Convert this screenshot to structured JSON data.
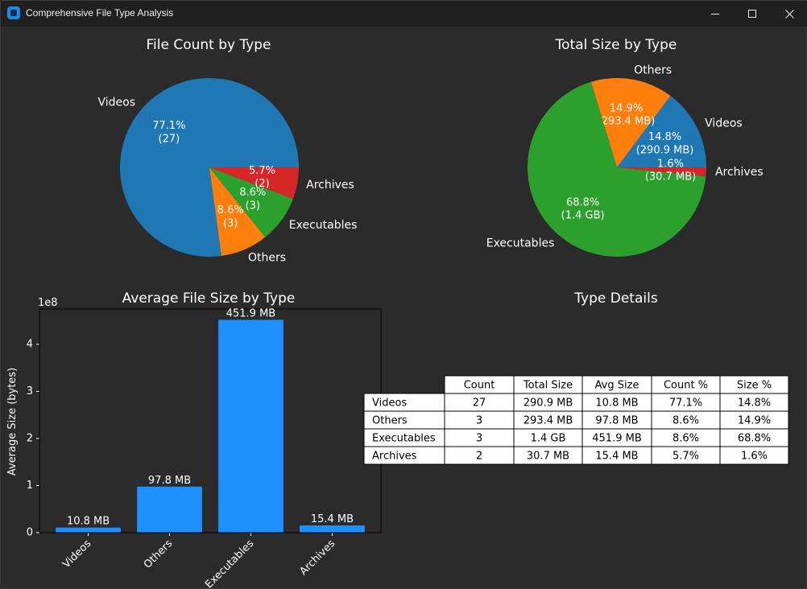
{
  "window": {
    "title": "Comprehensive File Type Analysis"
  },
  "colors": {
    "background": "#2b2b2b",
    "titlebar": "#202020",
    "bar": "#1e90ff"
  },
  "chart_data": [
    {
      "type": "pie",
      "title": "File Count by Type",
      "labels": [
        "Videos",
        "Others",
        "Executables",
        "Archives"
      ],
      "values": [
        27,
        3,
        3,
        2
      ],
      "percent_labels": [
        "77.1%\n(27)",
        "8.6%\n(3)",
        "8.6%\n(3)",
        "5.7%\n(2)"
      ],
      "colors": [
        "#1f77b4",
        "#ff7f0e",
        "#2ca02c",
        "#d62728"
      ]
    },
    {
      "type": "pie",
      "title": "Total Size by Type",
      "labels": [
        "Videos",
        "Others",
        "Executables",
        "Archives"
      ],
      "values": [
        14.8,
        14.9,
        68.8,
        1.6
      ],
      "percent_labels": [
        "14.8%\n(290.9 MB)",
        "14.9%\n(293.4 MB)",
        "68.8%\n(1.4 GB)",
        "1.6%\n(30.7 MB)"
      ],
      "colors": [
        "#1f77b4",
        "#ff7f0e",
        "#2ca02c",
        "#d62728"
      ]
    },
    {
      "type": "bar",
      "title": "Average File Size by Type",
      "categories": [
        "Videos",
        "Others",
        "Executables",
        "Archives"
      ],
      "values": [
        10800000,
        97800000,
        451900000,
        15400000
      ],
      "bar_labels": [
        "10.8 MB",
        "97.8 MB",
        "451.9 MB",
        "15.4 MB"
      ],
      "ylabel": "Average Size (bytes)",
      "yscale_label": "1e8",
      "yticks": [
        0,
        1,
        2,
        3,
        4
      ],
      "ylim": [
        0,
        475000000
      ],
      "color": "#1e90ff"
    },
    {
      "type": "table",
      "title": "Type Details",
      "columns": [
        "Count",
        "Total Size",
        "Avg Size",
        "Count %",
        "Size %"
      ],
      "rows": [
        {
          "label": "Videos",
          "cells": [
            "27",
            "290.9 MB",
            "10.8 MB",
            "77.1%",
            "14.8%"
          ]
        },
        {
          "label": "Others",
          "cells": [
            "3",
            "293.4 MB",
            "97.8 MB",
            "8.6%",
            "14.9%"
          ]
        },
        {
          "label": "Executables",
          "cells": [
            "3",
            "1.4 GB",
            "451.9 MB",
            "8.6%",
            "68.8%"
          ]
        },
        {
          "label": "Archives",
          "cells": [
            "2",
            "30.7 MB",
            "15.4 MB",
            "5.7%",
            "1.6%"
          ]
        }
      ]
    }
  ]
}
